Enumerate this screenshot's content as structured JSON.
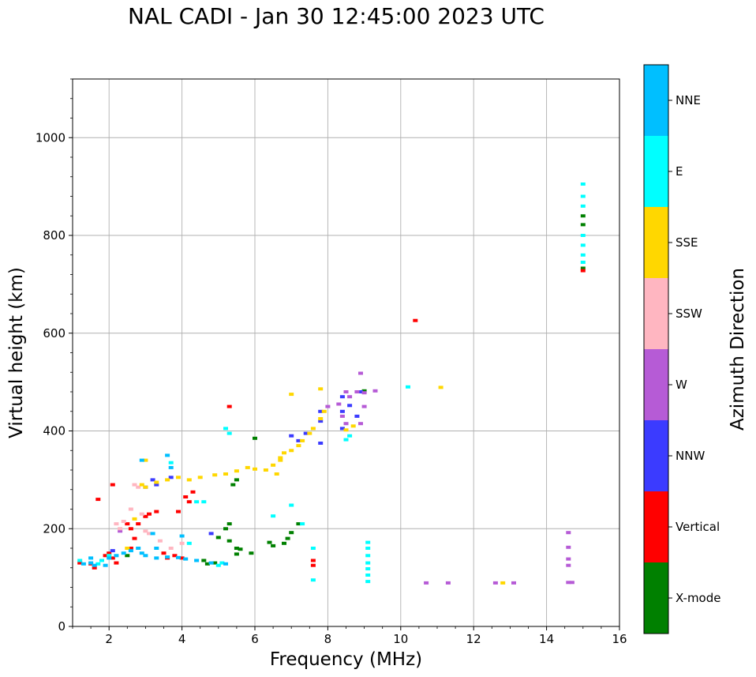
{
  "chart_data": {
    "type": "scatter",
    "title": "NAL CADI - Jan 30 12:45:00 2023 UTC",
    "xlabel": "Frequency (MHz)",
    "ylabel": "Virtual height (km)",
    "xlim": [
      1,
      16
    ],
    "ylim": [
      0,
      1120
    ],
    "xticks": [
      2,
      4,
      6,
      8,
      10,
      12,
      14,
      16
    ],
    "yticks": [
      0,
      200,
      400,
      600,
      800,
      1000
    ],
    "grid": true,
    "colorbar": {
      "label": "Azimuth Direction",
      "categories": [
        {
          "name": "X-mode",
          "color": "#008000"
        },
        {
          "name": "Vertical",
          "color": "#ff0000"
        },
        {
          "name": "NNW",
          "color": "#3b3bff"
        },
        {
          "name": "W",
          "color": "#b65bd6"
        },
        {
          "name": "SSW",
          "color": "#ffb6c1"
        },
        {
          "name": "SSE",
          "color": "#ffd700"
        },
        {
          "name": "E",
          "color": "#00ffff"
        },
        {
          "name": "NNE",
          "color": "#00bfff"
        }
      ]
    },
    "series": [
      {
        "name": "X-mode",
        "points": [
          [
            4.6,
            135
          ],
          [
            4.7,
            128
          ],
          [
            5.3,
            210
          ],
          [
            5.2,
            200
          ],
          [
            5.0,
            182
          ],
          [
            5.3,
            175
          ],
          [
            5.5,
            160
          ],
          [
            5.5,
            148
          ],
          [
            5.6,
            158
          ],
          [
            6.4,
            172
          ],
          [
            6.5,
            165
          ],
          [
            6.8,
            170
          ],
          [
            6.9,
            180
          ],
          [
            7.0,
            192
          ],
          [
            7.2,
            210
          ],
          [
            5.4,
            290
          ],
          [
            5.5,
            300
          ],
          [
            6.0,
            385
          ],
          [
            9.0,
            482
          ],
          [
            2.5,
            145
          ],
          [
            5.9,
            150
          ],
          [
            4.9,
            130
          ],
          [
            15.0,
            822
          ],
          [
            15.0,
            840
          ],
          [
            15.0,
            733
          ]
        ]
      },
      {
        "name": "Vertical",
        "points": [
          [
            1.5,
            128
          ],
          [
            1.6,
            120
          ],
          [
            1.9,
            145
          ],
          [
            2.0,
            150
          ],
          [
            2.1,
            140
          ],
          [
            2.2,
            130
          ],
          [
            2.5,
            210
          ],
          [
            2.6,
            200
          ],
          [
            2.7,
            180
          ],
          [
            2.8,
            210
          ],
          [
            3.0,
            225
          ],
          [
            3.1,
            230
          ],
          [
            3.3,
            235
          ],
          [
            3.5,
            150
          ],
          [
            3.6,
            140
          ],
          [
            4.0,
            140
          ],
          [
            4.1,
            265
          ],
          [
            4.3,
            275
          ],
          [
            3.9,
            235
          ],
          [
            4.2,
            255
          ],
          [
            1.7,
            260
          ],
          [
            2.1,
            290
          ],
          [
            1.2,
            130
          ],
          [
            5.3,
            450
          ],
          [
            7.6,
            125
          ],
          [
            7.6,
            135
          ],
          [
            10.4,
            626
          ],
          [
            15.0,
            728
          ],
          [
            2.6,
            160
          ],
          [
            3.8,
            145
          ]
        ]
      },
      {
        "name": "NNW",
        "points": [
          [
            3.2,
            300
          ],
          [
            3.3,
            290
          ],
          [
            3.0,
            285
          ],
          [
            3.7,
            305
          ],
          [
            7.0,
            390
          ],
          [
            7.2,
            380
          ],
          [
            7.4,
            395
          ],
          [
            7.8,
            440
          ],
          [
            7.8,
            420
          ],
          [
            7.8,
            375
          ],
          [
            8.4,
            440
          ],
          [
            8.4,
            470
          ],
          [
            8.6,
            452
          ],
          [
            8.8,
            430
          ],
          [
            8.9,
            480
          ],
          [
            8.4,
            405
          ],
          [
            4.8,
            190
          ],
          [
            2.1,
            155
          ]
        ]
      },
      {
        "name": "W",
        "points": [
          [
            8.5,
            480
          ],
          [
            8.6,
            470
          ],
          [
            8.8,
            480
          ],
          [
            9.0,
            478
          ],
          [
            9.3,
            482
          ],
          [
            8.9,
            518
          ],
          [
            8.4,
            430
          ],
          [
            8.5,
            415
          ],
          [
            8.9,
            415
          ],
          [
            9.0,
            450
          ],
          [
            14.6,
            192
          ],
          [
            14.6,
            162
          ],
          [
            14.6,
            138
          ],
          [
            14.6,
            125
          ],
          [
            14.6,
            90
          ],
          [
            14.7,
            90
          ],
          [
            12.6,
            89
          ],
          [
            13.1,
            89
          ],
          [
            10.7,
            89
          ],
          [
            11.3,
            89
          ],
          [
            8.0,
            450
          ],
          [
            8.3,
            455
          ],
          [
            2.3,
            195
          ]
        ]
      },
      {
        "name": "SSW",
        "points": [
          [
            2.2,
            210
          ],
          [
            2.3,
            200
          ],
          [
            2.4,
            215
          ],
          [
            2.6,
            240
          ],
          [
            2.7,
            290
          ],
          [
            2.8,
            285
          ],
          [
            3.0,
            195
          ],
          [
            3.1,
            190
          ],
          [
            3.7,
            160
          ],
          [
            4.0,
            170
          ],
          [
            3.4,
            175
          ],
          [
            2.9,
            230
          ]
        ]
      },
      {
        "name": "SSE",
        "points": [
          [
            2.9,
            290
          ],
          [
            3.0,
            285
          ],
          [
            3.3,
            295
          ],
          [
            3.6,
            300
          ],
          [
            3.9,
            305
          ],
          [
            4.2,
            300
          ],
          [
            4.5,
            305
          ],
          [
            4.9,
            310
          ],
          [
            5.2,
            312
          ],
          [
            5.5,
            318
          ],
          [
            5.8,
            325
          ],
          [
            6.0,
            322
          ],
          [
            6.3,
            320
          ],
          [
            6.5,
            330
          ],
          [
            6.7,
            340
          ],
          [
            6.7,
            345
          ],
          [
            6.8,
            355
          ],
          [
            7.0,
            360
          ],
          [
            7.2,
            370
          ],
          [
            7.3,
            380
          ],
          [
            7.5,
            395
          ],
          [
            7.6,
            405
          ],
          [
            7.8,
            425
          ],
          [
            7.9,
            440
          ],
          [
            8.5,
            402
          ],
          [
            8.7,
            410
          ],
          [
            11.1,
            489
          ],
          [
            12.8,
            89
          ],
          [
            7.8,
            486
          ],
          [
            2.0,
            145
          ],
          [
            2.5,
            160
          ],
          [
            2.7,
            220
          ],
          [
            3.0,
            340
          ],
          [
            7.0,
            475
          ],
          [
            6.6,
            312
          ]
        ]
      },
      {
        "name": "E",
        "points": [
          [
            1.7,
            128
          ],
          [
            1.8,
            135
          ],
          [
            2.0,
            145
          ],
          [
            3.7,
            335
          ],
          [
            4.2,
            170
          ],
          [
            5.1,
            130
          ],
          [
            5.0,
            125
          ],
          [
            6.5,
            226
          ],
          [
            7.0,
            248
          ],
          [
            7.3,
            210
          ],
          [
            7.6,
            160
          ],
          [
            7.6,
            95
          ],
          [
            8.5,
            382
          ],
          [
            8.6,
            390
          ],
          [
            9.1,
            172
          ],
          [
            9.1,
            160
          ],
          [
            9.1,
            145
          ],
          [
            9.1,
            130
          ],
          [
            9.1,
            118
          ],
          [
            9.1,
            105
          ],
          [
            9.1,
            92
          ],
          [
            10.2,
            490
          ],
          [
            15.0,
            905
          ],
          [
            15.0,
            880
          ],
          [
            15.0,
            860
          ],
          [
            15.0,
            800
          ],
          [
            15.0,
            780
          ],
          [
            15.0,
            760
          ],
          [
            15.0,
            745
          ],
          [
            5.2,
            405
          ],
          [
            5.3,
            395
          ],
          [
            4.6,
            255
          ],
          [
            4.4,
            255
          ],
          [
            1.2,
            135
          ]
        ]
      },
      {
        "name": "NNE",
        "points": [
          [
            1.3,
            128
          ],
          [
            1.5,
            130
          ],
          [
            1.6,
            125
          ],
          [
            2.0,
            140
          ],
          [
            2.2,
            145
          ],
          [
            2.4,
            150
          ],
          [
            2.6,
            155
          ],
          [
            2.8,
            160
          ],
          [
            2.9,
            150
          ],
          [
            3.0,
            145
          ],
          [
            3.3,
            140
          ],
          [
            3.6,
            142
          ],
          [
            3.9,
            141
          ],
          [
            4.1,
            138
          ],
          [
            4.4,
            135
          ],
          [
            4.8,
            130
          ],
          [
            5.2,
            128
          ],
          [
            3.6,
            350
          ],
          [
            3.7,
            325
          ],
          [
            2.9,
            340
          ],
          [
            3.2,
            190
          ],
          [
            3.3,
            160
          ],
          [
            4.0,
            185
          ],
          [
            1.5,
            140
          ],
          [
            1.9,
            125
          ]
        ]
      }
    ]
  }
}
